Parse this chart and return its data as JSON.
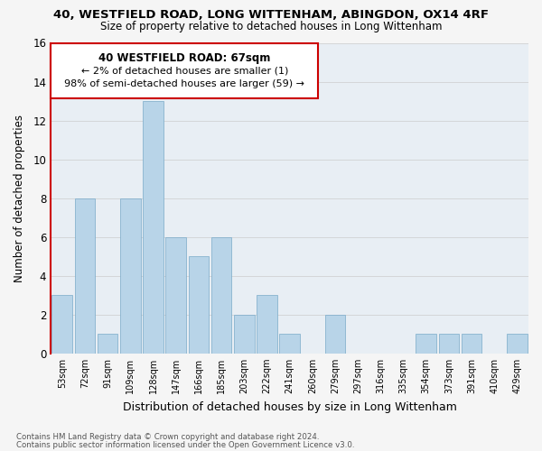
{
  "title1": "40, WESTFIELD ROAD, LONG WITTENHAM, ABINGDON, OX14 4RF",
  "title2": "Size of property relative to detached houses in Long Wittenham",
  "xlabel": "Distribution of detached houses by size in Long Wittenham",
  "ylabel": "Number of detached properties",
  "bin_labels": [
    "53sqm",
    "72sqm",
    "91sqm",
    "109sqm",
    "128sqm",
    "147sqm",
    "166sqm",
    "185sqm",
    "203sqm",
    "222sqm",
    "241sqm",
    "260sqm",
    "279sqm",
    "297sqm",
    "316sqm",
    "335sqm",
    "354sqm",
    "373sqm",
    "391sqm",
    "410sqm",
    "429sqm"
  ],
  "bar_values": [
    3,
    8,
    1,
    8,
    13,
    6,
    5,
    6,
    2,
    3,
    1,
    0,
    2,
    0,
    0,
    0,
    1,
    1,
    1,
    0,
    1
  ],
  "bar_color": "#b8d4e8",
  "bar_edge_color": "#7aaac8",
  "highlight_color": "#cc0000",
  "annotation_title": "40 WESTFIELD ROAD: 67sqm",
  "annotation_line1": "← 2% of detached houses are smaller (1)",
  "annotation_line2": "98% of semi-detached houses are larger (59) →",
  "ylim": [
    0,
    16
  ],
  "yticks": [
    0,
    2,
    4,
    6,
    8,
    10,
    12,
    14,
    16
  ],
  "footnote1": "Contains HM Land Registry data © Crown copyright and database right 2024.",
  "footnote2": "Contains public sector information licensed under the Open Government Licence v3.0.",
  "bg_color": "#f5f5f5",
  "plot_bg_color": "#e8eef4"
}
